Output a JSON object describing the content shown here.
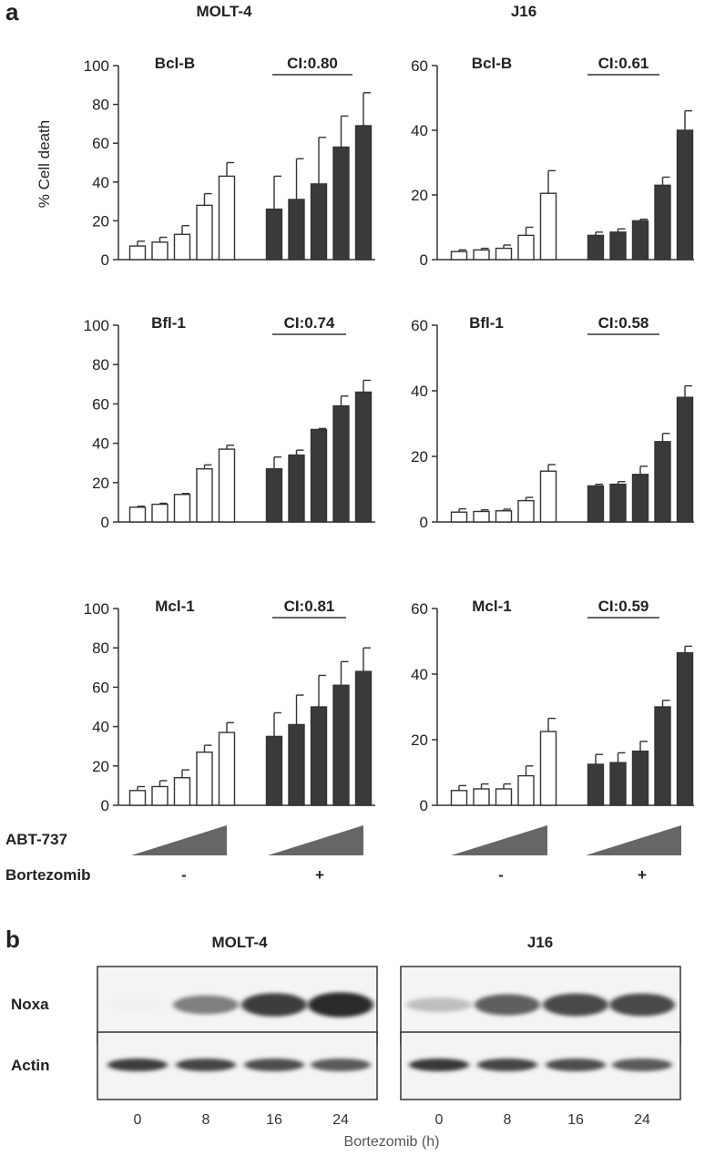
{
  "figure": {
    "panel_a_letter": "a",
    "panel_b_letter": "b",
    "columns": [
      "MOLT-4",
      "J16"
    ],
    "ylabel": "% Cell death",
    "treatments": {
      "abt_label": "ABT-737",
      "bortezomib_label": "Bortezomib",
      "minus": "-",
      "plus": "+"
    }
  },
  "chart_data": [
    {
      "type": "bar",
      "cell_line": "MOLT-4",
      "protein": "Bcl-B",
      "ci_label": "CI:0.80",
      "ylim": [
        0,
        100
      ],
      "yticks": [
        0,
        20,
        40,
        60,
        80,
        100
      ],
      "series": [
        {
          "bortezomib": "-",
          "values": [
            7,
            9,
            13,
            28,
            43
          ],
          "errors": [
            2.5,
            2.5,
            4.5,
            6,
            7
          ]
        },
        {
          "bortezomib": "+",
          "values": [
            26,
            31,
            39,
            58,
            69
          ],
          "errors": [
            17,
            21,
            24,
            16,
            17
          ]
        }
      ]
    },
    {
      "type": "bar",
      "cell_line": "J16",
      "protein": "Bcl-B",
      "ci_label": "CI:0.61",
      "ylim": [
        0,
        60
      ],
      "yticks": [
        0,
        20,
        40,
        60
      ],
      "series": [
        {
          "bortezomib": "-",
          "values": [
            2.5,
            3,
            3.5,
            7.5,
            20.5
          ],
          "errors": [
            0.5,
            0.5,
            1,
            2.5,
            7
          ]
        },
        {
          "bortezomib": "+",
          "values": [
            7.5,
            8.5,
            12,
            23,
            40
          ],
          "errors": [
            1,
            1,
            0.5,
            2.5,
            6
          ]
        }
      ]
    },
    {
      "type": "bar",
      "cell_line": "MOLT-4",
      "protein": "Bfl-1",
      "ci_label": "CI:0.74",
      "ylim": [
        0,
        100
      ],
      "yticks": [
        0,
        20,
        40,
        60,
        80,
        100
      ],
      "series": [
        {
          "bortezomib": "-",
          "values": [
            7.5,
            9,
            14,
            27,
            37
          ],
          "errors": [
            0.5,
            0.5,
            0.5,
            2,
            2
          ]
        },
        {
          "bortezomib": "+",
          "values": [
            27,
            34,
            47,
            59,
            66
          ],
          "errors": [
            6,
            2.5,
            0.5,
            5,
            6
          ]
        }
      ]
    },
    {
      "type": "bar",
      "cell_line": "J16",
      "protein": "Bfl-1",
      "ci_label": "CI:0.58",
      "ylim": [
        0,
        60
      ],
      "yticks": [
        0,
        20,
        40,
        60
      ],
      "series": [
        {
          "bortezomib": "-",
          "values": [
            3,
            3.2,
            3.4,
            6.5,
            15.5
          ],
          "errors": [
            1,
            0.5,
            0.5,
            1,
            2
          ]
        },
        {
          "bortezomib": "+",
          "values": [
            11,
            11.5,
            14.5,
            24.5,
            38
          ],
          "errors": [
            0.5,
            0.8,
            2.5,
            2.5,
            3.5
          ]
        }
      ]
    },
    {
      "type": "bar",
      "cell_line": "MOLT-4",
      "protein": "Mcl-1",
      "ci_label": "CI:0.81",
      "ylim": [
        0,
        100
      ],
      "yticks": [
        0,
        20,
        40,
        60,
        80,
        100
      ],
      "series": [
        {
          "bortezomib": "-",
          "values": [
            7.5,
            9.5,
            14,
            27,
            37
          ],
          "errors": [
            2,
            3,
            4,
            3.5,
            5
          ]
        },
        {
          "bortezomib": "+",
          "values": [
            35,
            41,
            50,
            61,
            68
          ],
          "errors": [
            12,
            15,
            16,
            12,
            12
          ]
        }
      ]
    },
    {
      "type": "bar",
      "cell_line": "J16",
      "protein": "Mcl-1",
      "ci_label": "CI:0.59",
      "ylim": [
        0,
        60
      ],
      "yticks": [
        0,
        20,
        40,
        60
      ],
      "series": [
        {
          "bortezomib": "-",
          "values": [
            4.5,
            5,
            5,
            9,
            22.5
          ],
          "errors": [
            1.5,
            1.5,
            1.5,
            3,
            4
          ]
        },
        {
          "bortezomib": "+",
          "values": [
            12.5,
            13,
            16.5,
            30,
            46.5
          ],
          "errors": [
            3,
            3,
            3,
            2,
            2
          ]
        }
      ]
    }
  ],
  "blot": {
    "cell_lines": [
      "MOLT-4",
      "J16"
    ],
    "rows": [
      "Noxa",
      "Actin"
    ],
    "timepoints": [
      "0",
      "8",
      "16",
      "24"
    ],
    "xlabel": "Bortezomib (h)",
    "noxa_intensity": {
      "MOLT-4": [
        0.02,
        0.55,
        0.85,
        0.95
      ],
      "J16": [
        0.25,
        0.7,
        0.8,
        0.8
      ]
    },
    "actin_intensity": {
      "MOLT-4": [
        0.85,
        0.82,
        0.78,
        0.72
      ],
      "J16": [
        0.88,
        0.82,
        0.78,
        0.72
      ]
    }
  }
}
